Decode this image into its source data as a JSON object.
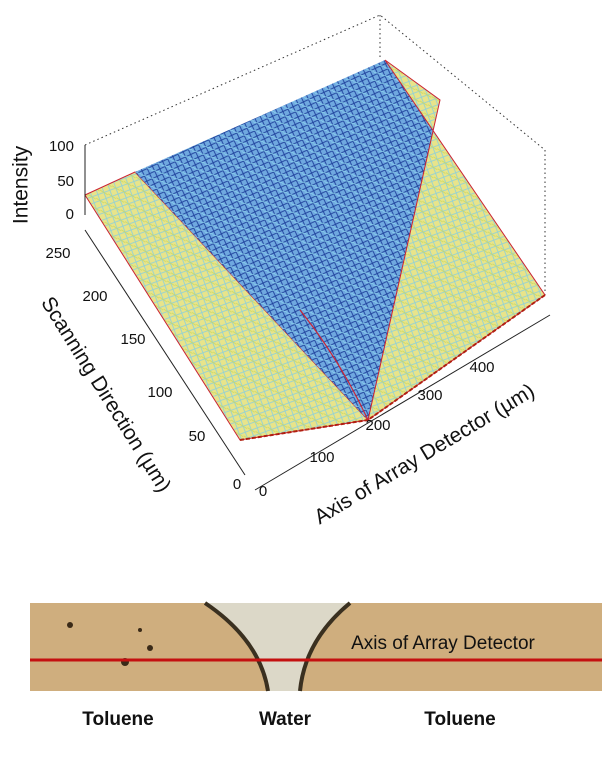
{
  "plot": {
    "z_axis": {
      "label": "Intensity",
      "ticks": [
        "0",
        "50",
        "100"
      ]
    },
    "y_axis": {
      "label": "Scanning Direction (µm)",
      "ticks": [
        "0",
        "50",
        "100",
        "150",
        "200",
        "250"
      ]
    },
    "x_axis": {
      "label": "Axis of Array Detector  (µm)",
      "ticks": [
        "0",
        "100",
        "200",
        "300",
        "400"
      ]
    }
  },
  "micrograph": {
    "annotation": "Axis of Array Detector",
    "labels": [
      "Toluene",
      "Water",
      "Toluene"
    ]
  }
}
